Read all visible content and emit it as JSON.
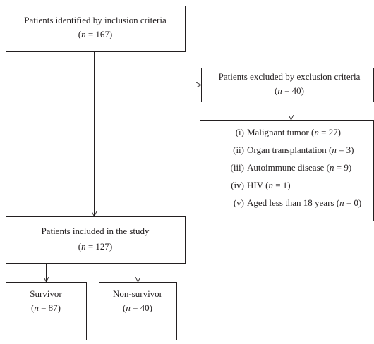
{
  "nodes": [
    {
      "label": "Patients identified by inclusion criteria",
      "count": "(n = 167)"
    },
    {
      "label": "Patients excluded by exclusion criteria",
      "count": "(n = 40)"
    },
    {
      "label": "Patients included in the study",
      "count": "(n = 127)"
    },
    {
      "label": "Survivor",
      "count": "(n = 87)"
    },
    {
      "label": "Non-survivor",
      "count": "(n = 40)"
    }
  ],
  "exclusions": [
    {
      "marker": "(i)",
      "text": "Malignant tumor (n = 27)"
    },
    {
      "marker": "(ii)",
      "text": "Organ transplantation (n = 3)"
    },
    {
      "marker": "(iii)",
      "text": "Autoimmune disease (n = 9)"
    },
    {
      "marker": "(iv)",
      "text": "HIV (n = 1)"
    },
    {
      "marker": "(v)",
      "text": "Aged less than 18 years (n = 0)"
    }
  ]
}
